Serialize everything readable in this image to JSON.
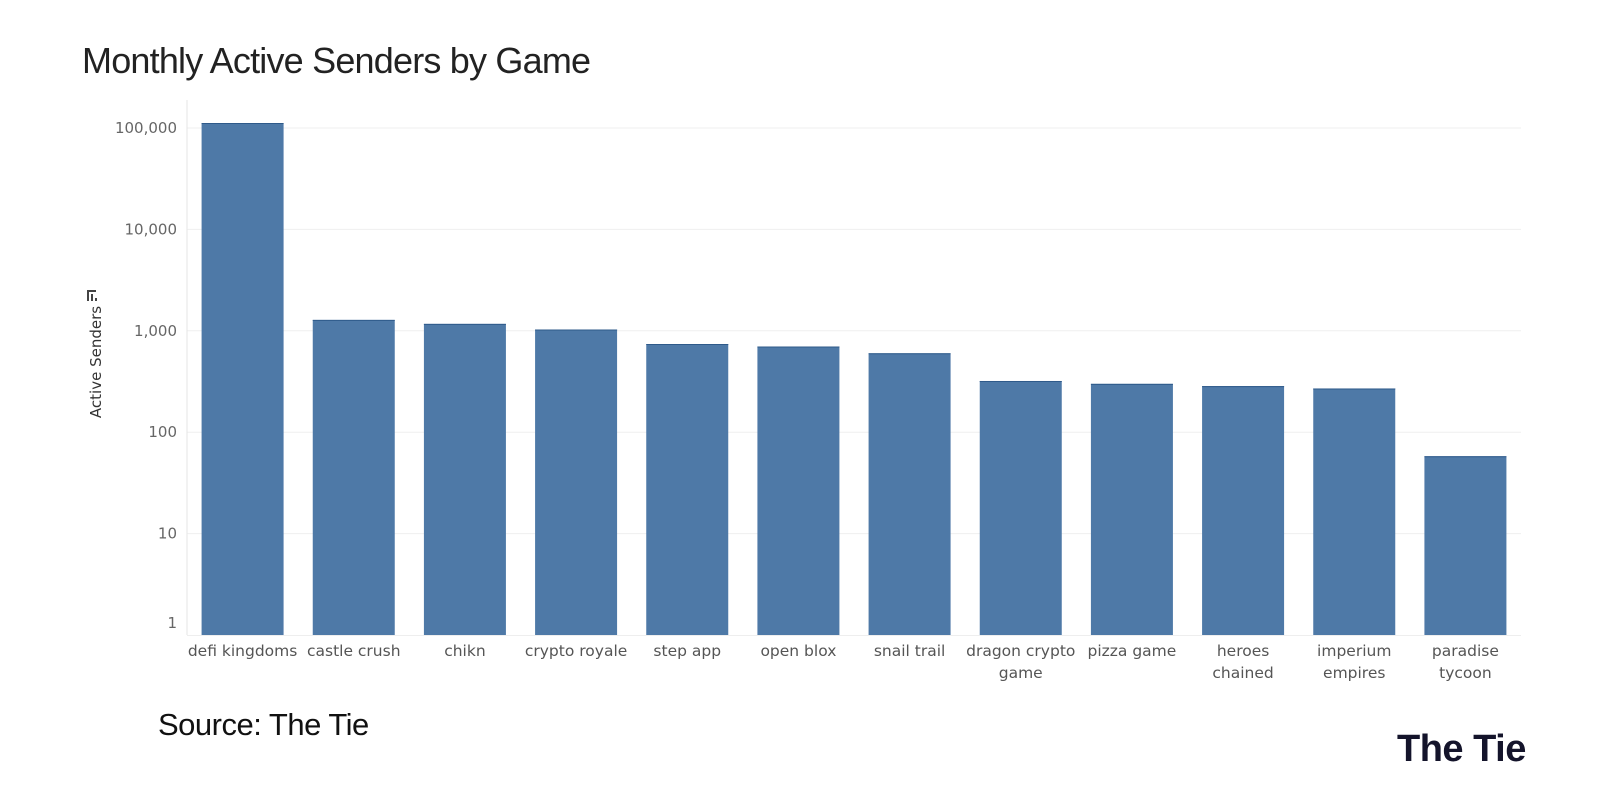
{
  "header": {
    "title": "Monthly Active Senders by Game"
  },
  "footer": {
    "source": "Source: The Tie",
    "brand": "The Tie"
  },
  "chart_data": {
    "type": "bar",
    "title": "Monthly Active Senders by Game",
    "xlabel": "",
    "ylabel": "Active Senders",
    "yscale": "log",
    "ylim": [
      1,
      100000
    ],
    "yticks": [
      1,
      10,
      100,
      1000,
      10000,
      100000
    ],
    "ytick_labels": [
      "1",
      "10",
      "100",
      "1,000",
      "10,000",
      "100,000"
    ],
    "grid": true,
    "bar_color": "#4e79a7",
    "categories": [
      "defi kingdoms",
      "castle crush",
      "chikn",
      "crypto royale",
      "step app",
      "open blox",
      "snail trail",
      "dragon crypto game",
      "pizza game",
      "heroes chained",
      "imperium empires",
      "paradise tycoon"
    ],
    "category_lines": [
      [
        "defi kingdoms"
      ],
      [
        "castle crush"
      ],
      [
        "chikn"
      ],
      [
        "crypto royale"
      ],
      [
        "step app"
      ],
      [
        "open blox"
      ],
      [
        "snail trail"
      ],
      [
        "dragon crypto",
        "game"
      ],
      [
        "pizza game"
      ],
      [
        "heroes",
        "chained"
      ],
      [
        "imperium",
        "empires"
      ],
      [
        "paradise",
        "tycoon"
      ]
    ],
    "values": [
      112000,
      1280,
      1170,
      1030,
      740,
      700,
      600,
      320,
      300,
      285,
      270,
      58
    ]
  }
}
